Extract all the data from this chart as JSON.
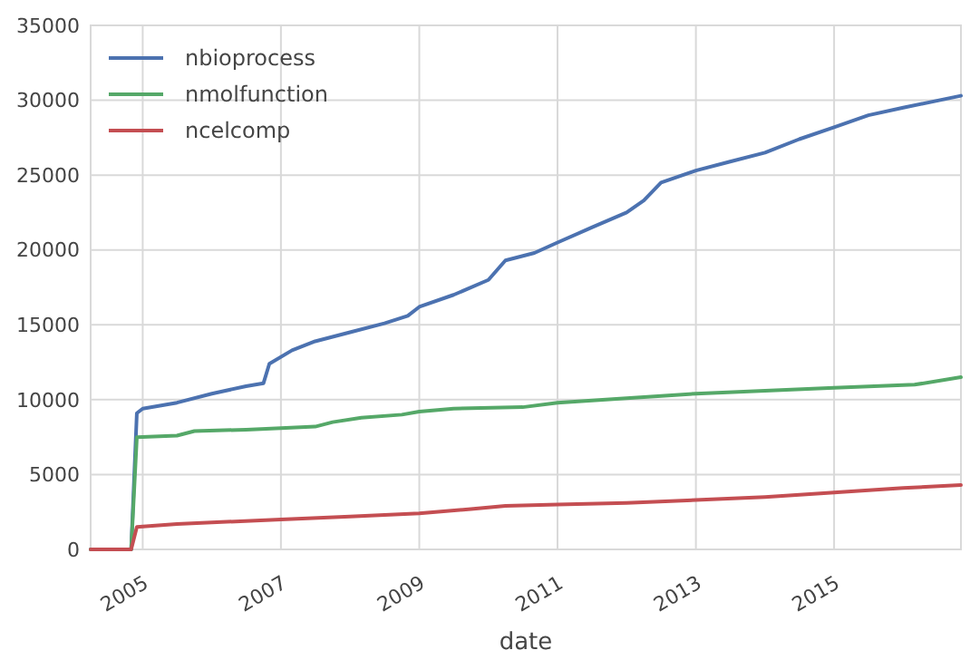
{
  "chart_data": {
    "type": "line",
    "xlabel": "date",
    "xlim": [
      "2004-04",
      "2016-11"
    ],
    "xticks": [
      "2005",
      "2007",
      "2009",
      "2011",
      "2013",
      "2015"
    ],
    "ylim": [
      0,
      35000
    ],
    "yticks": [
      0,
      5000,
      10000,
      15000,
      20000,
      25000,
      30000,
      35000
    ],
    "grid": true,
    "legend": "top left",
    "line_style": "solid",
    "marker": "none",
    "series": [
      {
        "name": "nbioprocess",
        "color": "#4c72b0",
        "x": [
          "2004-04",
          "2004-11",
          "2004-12",
          "2005-01",
          "2005-07",
          "2006-01",
          "2006-07",
          "2006-10",
          "2006-11",
          "2007-03",
          "2007-07",
          "2008-01",
          "2008-07",
          "2008-11",
          "2009-01",
          "2009-07",
          "2010-01",
          "2010-04",
          "2010-09",
          "2011-01",
          "2011-07",
          "2012-01",
          "2012-04",
          "2012-07",
          "2013-01",
          "2013-07",
          "2014-01",
          "2014-07",
          "2015-01",
          "2015-07",
          "2016-01",
          "2016-11"
        ],
        "values": [
          0,
          0,
          9100,
          9400,
          9800,
          10400,
          10900,
          11100,
          12400,
          13300,
          13900,
          14500,
          15100,
          15600,
          16200,
          17000,
          18000,
          19300,
          19800,
          20500,
          21500,
          22500,
          23300,
          24500,
          25300,
          25900,
          26500,
          27400,
          28200,
          29000,
          29500,
          30300
        ]
      },
      {
        "name": "nmolfunction",
        "color": "#55a868",
        "x": [
          "2004-04",
          "2004-11",
          "2004-12",
          "2005-07",
          "2005-10",
          "2006-07",
          "2007-01",
          "2007-07",
          "2007-10",
          "2008-03",
          "2008-10",
          "2009-01",
          "2009-07",
          "2010-07",
          "2011-01",
          "2012-01",
          "2013-01",
          "2014-01",
          "2015-01",
          "2016-03",
          "2016-11"
        ],
        "values": [
          0,
          0,
          7500,
          7600,
          7900,
          8000,
          8100,
          8200,
          8500,
          8800,
          9000,
          9200,
          9400,
          9500,
          9800,
          10100,
          10400,
          10600,
          10800,
          11000,
          11500
        ]
      },
      {
        "name": "ncelcomp",
        "color": "#c44e52",
        "x": [
          "2004-04",
          "2004-11",
          "2004-12",
          "2005-07",
          "2006-01",
          "2007-01",
          "2008-01",
          "2009-01",
          "2009-10",
          "2010-04",
          "2011-01",
          "2012-01",
          "2013-01",
          "2014-01",
          "2015-01",
          "2016-01",
          "2016-11"
        ],
        "values": [
          0,
          0,
          1500,
          1700,
          1800,
          2000,
          2200,
          2400,
          2700,
          2900,
          3000,
          3100,
          3300,
          3500,
          3800,
          4100,
          4300
        ]
      }
    ]
  }
}
